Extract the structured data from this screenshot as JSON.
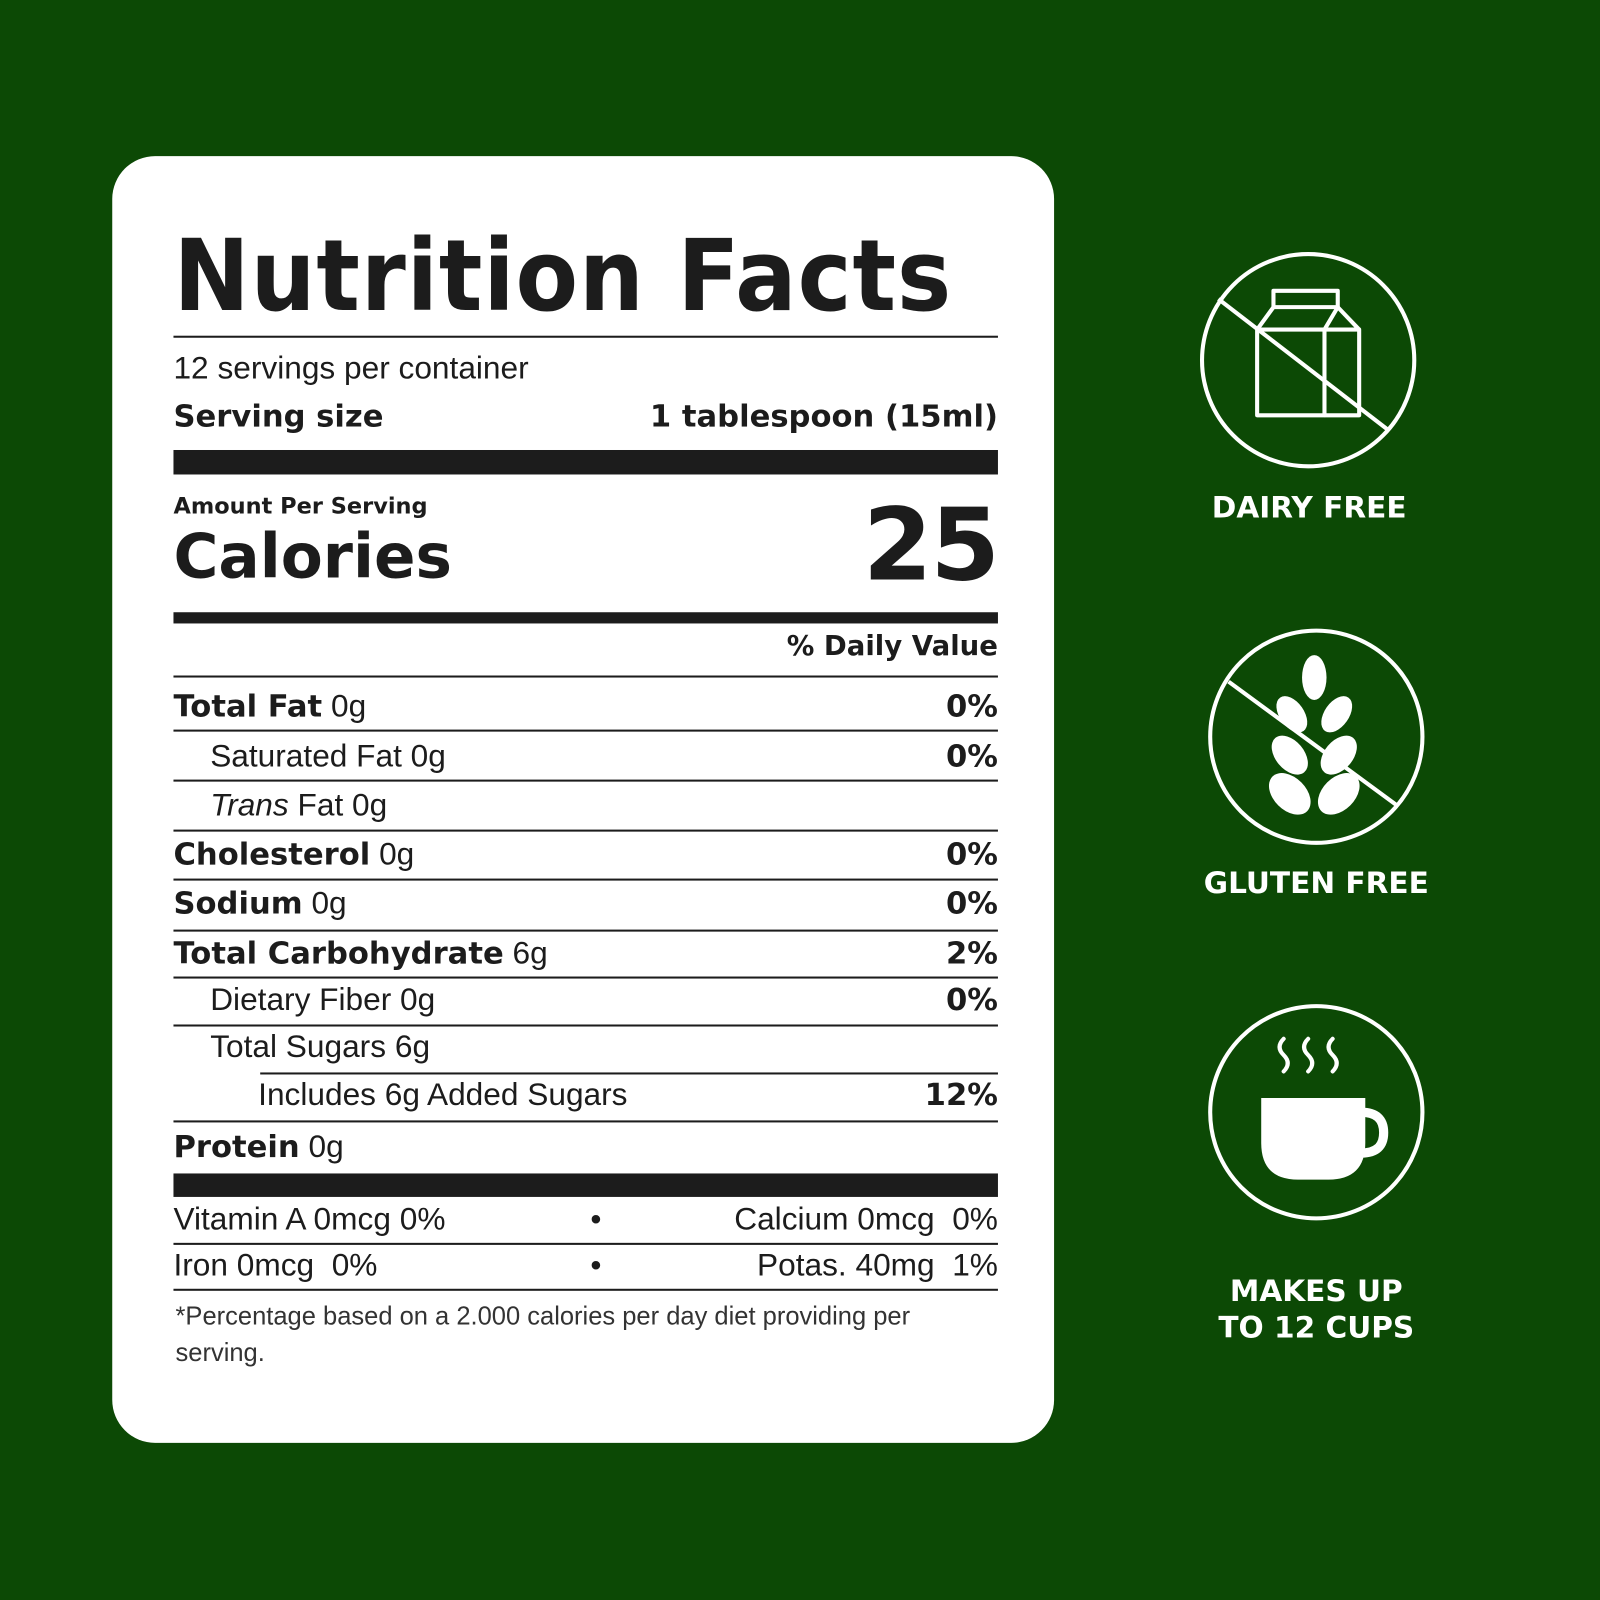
{
  "colors": {
    "background": "#0c4905",
    "card": "#ffffff",
    "ink": "#1c1c1c",
    "icon": "#ffffff"
  },
  "label": {
    "title": "Nutrition Facts",
    "servings_per_container": "12 servings per container",
    "serving_size_label": "Serving size",
    "serving_size_value": "1 tablespoon (15ml)",
    "amount_per_serving": "Amount Per Serving",
    "calories_label": "Calories",
    "calories_value": "25",
    "daily_value_header": "% Daily Value",
    "nutrients": [
      {
        "name": "Total Fat",
        "amount": "0g",
        "dv": "0%"
      },
      {
        "name": "Saturated Fat",
        "amount": "0g",
        "dv": "0%"
      },
      {
        "name": "Trans",
        "name_suffix": "Fat",
        "amount": "0g",
        "dv": ""
      },
      {
        "name": "Cholesterol",
        "amount": "0g",
        "dv": "0%"
      },
      {
        "name": "Sodium",
        "amount": "0g",
        "dv": "0%"
      },
      {
        "name": "Total Carbohydrate",
        "amount": "6g",
        "dv": "2%"
      },
      {
        "name": "Dietary Fiber",
        "amount": "0g",
        "dv": "0%"
      },
      {
        "name": "Total Sugars",
        "amount": "6g",
        "dv": ""
      },
      {
        "name": "Includes 6g Added Sugars",
        "amount": "",
        "dv": "12%"
      },
      {
        "name": "Protein",
        "amount": "0g",
        "dv": ""
      }
    ],
    "vitamins": [
      {
        "left": "Vitamin A 0mcg",
        "left_dv": "0%",
        "right": "Calcium 0mcg",
        "right_dv": "0%"
      },
      {
        "left": "Iron 0mcg",
        "left_dv": "0%",
        "right": "Potas. 40mg",
        "right_dv": "1%"
      }
    ],
    "bullet": "•",
    "footnote": "*Percentage based on a 2.000 calories per day diet providing per serving."
  },
  "badges": [
    {
      "icon": "no-dairy-milk-carton-icon",
      "label": "DAIRY FREE"
    },
    {
      "icon": "no-gluten-wheat-icon",
      "label": "GLUTEN FREE"
    },
    {
      "icon": "coffee-cup-icon",
      "label_line1": "MAKES UP",
      "label_line2": "TO 12 CUPS"
    }
  ]
}
